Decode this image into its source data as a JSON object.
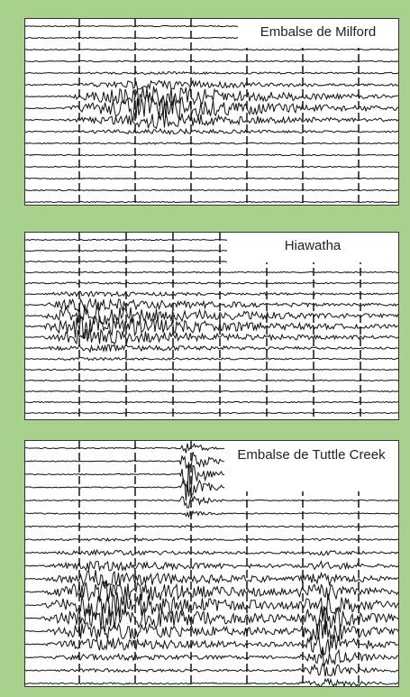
{
  "panels": [
    {
      "label": "Embalse de Milford"
    },
    {
      "label": "Hiawatha"
    },
    {
      "label": "Embalse de Tuttle Creek"
    }
  ]
}
